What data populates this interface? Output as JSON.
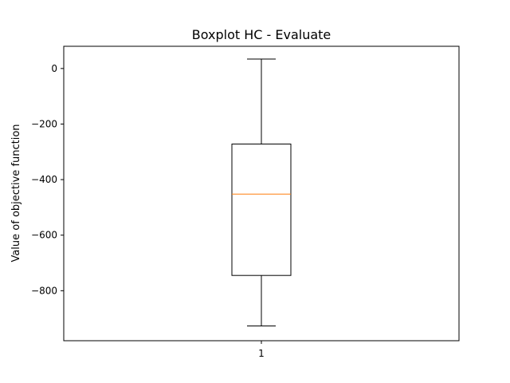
{
  "chart_data": {
    "type": "box",
    "title": "Boxplot HC - Evaluate",
    "xlabel": "",
    "ylabel": "Value of objective function",
    "categories": [
      "1"
    ],
    "boxes": [
      {
        "category": "1",
        "whisker_low": -927,
        "q1": -745,
        "median": -452,
        "q3": -272,
        "whisker_high": 34
      }
    ],
    "ylim": [
      -980,
      80
    ],
    "yticks": [
      0,
      -200,
      -400,
      -600,
      -800
    ],
    "ytick_labels": [
      "0",
      "−200",
      "−400",
      "−600",
      "−800"
    ],
    "grid": false,
    "colors": {
      "box": "#000000",
      "median": "#ff7f0e"
    }
  }
}
